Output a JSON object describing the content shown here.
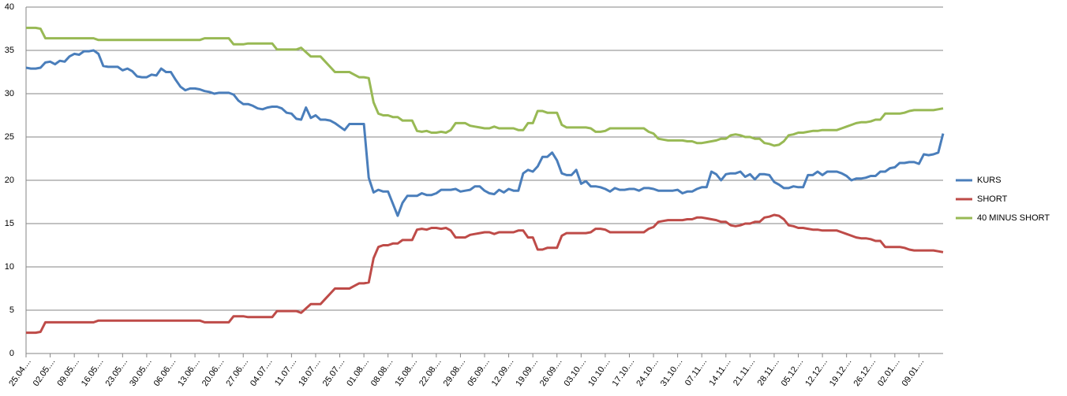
{
  "chart_data": {
    "type": "line",
    "categories": [
      "25.04....",
      null,
      null,
      null,
      null,
      "02.05....",
      null,
      null,
      null,
      null,
      "09.05....",
      null,
      null,
      null,
      null,
      "16.05....",
      null,
      null,
      null,
      null,
      "23.05....",
      null,
      null,
      null,
      null,
      "30.05....",
      null,
      null,
      null,
      null,
      "06.06....",
      null,
      null,
      null,
      null,
      "13.06....",
      null,
      null,
      null,
      null,
      "20.06....",
      null,
      null,
      null,
      null,
      "27.06....",
      null,
      null,
      null,
      null,
      "04.07....",
      null,
      null,
      null,
      null,
      "11.07....",
      null,
      null,
      null,
      null,
      "18.07....",
      null,
      null,
      null,
      null,
      "25.07....",
      null,
      null,
      null,
      null,
      "01.08....",
      null,
      null,
      null,
      null,
      "08.08....",
      null,
      null,
      null,
      null,
      "15.08....",
      null,
      null,
      null,
      null,
      "22.08....",
      null,
      null,
      null,
      null,
      "29.08....",
      null,
      null,
      null,
      null,
      "05.09....",
      null,
      null,
      null,
      null,
      "12.09....",
      null,
      null,
      null,
      null,
      "19.09....",
      null,
      null,
      null,
      null,
      "26.09....",
      null,
      null,
      null,
      null,
      "03.10....",
      null,
      null,
      null,
      null,
      "10.10....",
      null,
      null,
      null,
      null,
      "17.10....",
      null,
      null,
      null,
      null,
      "24.10....",
      null,
      null,
      null,
      null,
      "31.10....",
      null,
      null,
      null,
      null,
      "07.11....",
      null,
      null,
      null,
      null,
      "14.11....",
      null,
      null,
      null,
      null,
      "21.11....",
      null,
      null,
      null,
      null,
      "28.11....",
      null,
      null,
      null,
      null,
      "05.12....",
      null,
      null,
      null,
      null,
      "12.12....",
      null,
      null,
      null,
      null,
      "19.12....",
      null,
      null,
      null,
      null,
      "26.12....",
      null,
      null,
      null,
      null,
      "02.01....",
      null,
      null,
      null,
      null,
      "09.01....",
      null,
      null,
      null,
      null,
      null
    ],
    "series": [
      {
        "name": "KURS",
        "color": "#4a7ebb",
        "values": [
          33.0,
          32.9,
          32.9,
          33.0,
          33.6,
          33.7,
          33.4,
          33.8,
          33.7,
          34.3,
          34.6,
          34.5,
          34.9,
          34.9,
          35.0,
          34.6,
          33.2,
          33.1,
          33.1,
          33.1,
          32.7,
          32.9,
          32.6,
          32.0,
          31.9,
          31.9,
          32.2,
          32.1,
          32.9,
          32.5,
          32.5,
          31.6,
          30.8,
          30.4,
          30.6,
          30.6,
          30.5,
          30.3,
          30.2,
          30.0,
          30.1,
          30.1,
          30.1,
          29.9,
          29.2,
          28.8,
          28.8,
          28.6,
          28.3,
          28.2,
          28.4,
          28.5,
          28.5,
          28.3,
          27.8,
          27.7,
          27.1,
          27.0,
          28.4,
          27.2,
          27.5,
          27.0,
          27.0,
          26.9,
          26.6,
          26.2,
          25.8,
          26.5,
          26.5,
          26.5,
          26.5,
          20.3,
          18.6,
          18.9,
          18.7,
          18.7,
          17.3,
          15.9,
          17.4,
          18.2,
          18.2,
          18.2,
          18.5,
          18.3,
          18.3,
          18.5,
          18.9,
          18.9,
          18.9,
          19.0,
          18.7,
          18.8,
          18.9,
          19.3,
          19.3,
          18.8,
          18.5,
          18.4,
          18.9,
          18.6,
          19.0,
          18.8,
          18.8,
          20.8,
          21.2,
          21.0,
          21.6,
          22.7,
          22.7,
          23.2,
          22.3,
          20.8,
          20.6,
          20.6,
          21.2,
          19.6,
          19.9,
          19.3,
          19.3,
          19.2,
          19.0,
          18.7,
          19.1,
          18.9,
          18.9,
          19.0,
          19.0,
          18.8,
          19.1,
          19.1,
          19.0,
          18.8,
          18.8,
          18.8,
          18.8,
          18.9,
          18.5,
          18.7,
          18.7,
          19.0,
          19.2,
          19.2,
          21.0,
          20.7,
          20.0,
          20.7,
          20.8,
          20.8,
          21.0,
          20.4,
          20.7,
          20.1,
          20.7,
          20.7,
          20.6,
          19.8,
          19.5,
          19.1,
          19.1,
          19.3,
          19.2,
          19.2,
          20.6,
          20.6,
          21.0,
          20.6,
          21.0,
          21.0,
          21.0,
          20.8,
          20.5,
          20.0,
          20.2,
          20.2,
          20.3,
          20.5,
          20.5,
          21.0,
          21.0,
          21.4,
          21.5,
          22.0,
          22.0,
          22.1,
          22.1,
          21.9,
          23.0,
          22.9,
          23.0,
          23.2,
          25.4
        ]
      },
      {
        "name": "SHORT",
        "color": "#be4b48",
        "values": [
          2.4,
          2.4,
          2.4,
          2.5,
          3.6,
          3.6,
          3.6,
          3.6,
          3.6,
          3.6,
          3.6,
          3.6,
          3.6,
          3.6,
          3.6,
          3.8,
          3.8,
          3.8,
          3.8,
          3.8,
          3.8,
          3.8,
          3.8,
          3.8,
          3.8,
          3.8,
          3.8,
          3.8,
          3.8,
          3.8,
          3.8,
          3.8,
          3.8,
          3.8,
          3.8,
          3.8,
          3.8,
          3.6,
          3.6,
          3.6,
          3.6,
          3.6,
          3.6,
          4.3,
          4.3,
          4.3,
          4.2,
          4.2,
          4.2,
          4.2,
          4.2,
          4.2,
          4.9,
          4.9,
          4.9,
          4.9,
          4.9,
          4.7,
          5.2,
          5.7,
          5.7,
          5.7,
          6.3,
          6.9,
          7.5,
          7.5,
          7.5,
          7.5,
          7.8,
          8.1,
          8.1,
          8.2,
          11.0,
          12.3,
          12.5,
          12.5,
          12.7,
          12.7,
          13.1,
          13.1,
          13.1,
          14.3,
          14.4,
          14.3,
          14.5,
          14.5,
          14.4,
          14.5,
          14.2,
          13.4,
          13.4,
          13.4,
          13.7,
          13.8,
          13.9,
          14.0,
          14.0,
          13.8,
          14.0,
          14.0,
          14.0,
          14.0,
          14.2,
          14.2,
          13.4,
          13.4,
          12.0,
          12.0,
          12.2,
          12.2,
          12.2,
          13.6,
          13.9,
          13.9,
          13.9,
          13.9,
          13.9,
          14.0,
          14.4,
          14.4,
          14.3,
          14.0,
          14.0,
          14.0,
          14.0,
          14.0,
          14.0,
          14.0,
          14.0,
          14.4,
          14.6,
          15.2,
          15.3,
          15.4,
          15.4,
          15.4,
          15.4,
          15.5,
          15.5,
          15.7,
          15.7,
          15.6,
          15.5,
          15.4,
          15.2,
          15.2,
          14.8,
          14.7,
          14.8,
          15.0,
          15.0,
          15.2,
          15.2,
          15.7,
          15.8,
          16.0,
          15.9,
          15.5,
          14.8,
          14.7,
          14.5,
          14.5,
          14.4,
          14.3,
          14.3,
          14.2,
          14.2,
          14.2,
          14.2,
          14.0,
          13.8,
          13.6,
          13.4,
          13.3,
          13.3,
          13.2,
          13.0,
          13.0,
          12.3,
          12.3,
          12.3,
          12.3,
          12.2,
          12.0,
          11.9,
          11.9,
          11.9,
          11.9,
          11.9,
          11.8,
          11.7
        ]
      },
      {
        "name": "40 MINUS SHORT",
        "color": "#98b954",
        "values": [
          37.6,
          37.6,
          37.6,
          37.5,
          36.4,
          36.4,
          36.4,
          36.4,
          36.4,
          36.4,
          36.4,
          36.4,
          36.4,
          36.4,
          36.4,
          36.2,
          36.2,
          36.2,
          36.2,
          36.2,
          36.2,
          36.2,
          36.2,
          36.2,
          36.2,
          36.2,
          36.2,
          36.2,
          36.2,
          36.2,
          36.2,
          36.2,
          36.2,
          36.2,
          36.2,
          36.2,
          36.2,
          36.4,
          36.4,
          36.4,
          36.4,
          36.4,
          36.4,
          35.7,
          35.7,
          35.7,
          35.8,
          35.8,
          35.8,
          35.8,
          35.8,
          35.8,
          35.1,
          35.1,
          35.1,
          35.1,
          35.1,
          35.3,
          34.8,
          34.3,
          34.3,
          34.3,
          33.7,
          33.1,
          32.5,
          32.5,
          32.5,
          32.5,
          32.2,
          31.9,
          31.9,
          31.8,
          29,
          27.7,
          27.5,
          27.5,
          27.3,
          27.3,
          26.9,
          26.9,
          26.9,
          25.7,
          25.6,
          25.7,
          25.5,
          25.5,
          25.6,
          25.5,
          25.8,
          26.6,
          26.6,
          26.6,
          26.3,
          26.2,
          26.1,
          26,
          26,
          26.2,
          26,
          26,
          26,
          26,
          25.8,
          25.8,
          26.6,
          26.6,
          28,
          28,
          27.8,
          27.8,
          27.8,
          26.4,
          26.1,
          26.1,
          26.1,
          26.1,
          26.1,
          26,
          25.6,
          25.6,
          25.7,
          26,
          26,
          26,
          26,
          26,
          26,
          26,
          26,
          25.6,
          25.4,
          24.8,
          24.7,
          24.6,
          24.6,
          24.6,
          24.6,
          24.5,
          24.5,
          24.3,
          24.3,
          24.4,
          24.5,
          24.6,
          24.8,
          24.8,
          25.2,
          25.3,
          25.2,
          25,
          25,
          24.8,
          24.8,
          24.3,
          24.2,
          24,
          24.1,
          24.5,
          25.2,
          25.3,
          25.5,
          25.5,
          25.6,
          25.7,
          25.7,
          25.8,
          25.8,
          25.8,
          25.8,
          26,
          26.2,
          26.4,
          26.6,
          26.7,
          26.7,
          26.8,
          27,
          27,
          27.7,
          27.7,
          27.7,
          27.7,
          27.8,
          28,
          28.1,
          28.1,
          28.1,
          28.1,
          28.1,
          28.2,
          28.3
        ]
      }
    ],
    "ylim": [
      0,
      40
    ],
    "yticks": [
      0,
      5,
      10,
      15,
      20,
      25,
      30,
      35,
      40
    ],
    "grid": true,
    "legend": "right"
  }
}
